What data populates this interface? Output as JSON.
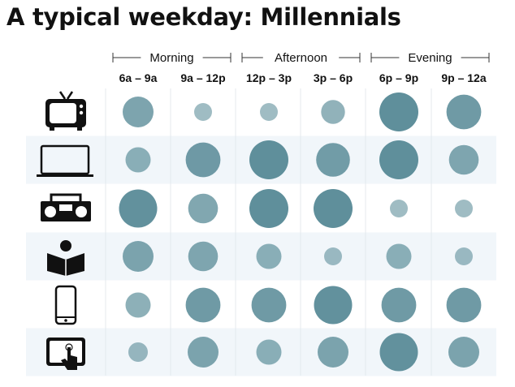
{
  "title": "A typical weekday: Millennials",
  "chart_data": {
    "type": "bubble-matrix",
    "title": "A typical weekday: Millennials",
    "column_groups": [
      {
        "label": "Morning",
        "columns": [
          0,
          1
        ]
      },
      {
        "label": "Afternoon",
        "columns": [
          2,
          3
        ]
      },
      {
        "label": "Evening",
        "columns": [
          4,
          5
        ]
      }
    ],
    "columns": [
      "6a – 9a",
      "9a – 12p",
      "12p – 3p",
      "3p – 6p",
      "6p – 9p",
      "9p – 12a"
    ],
    "rows": [
      {
        "icon": "tv-icon",
        "values": [
          15,
          5,
          5,
          9,
          24,
          19
        ]
      },
      {
        "icon": "laptop-icon",
        "values": [
          10,
          19,
          24,
          18,
          24,
          14
        ]
      },
      {
        "icon": "radio-icon",
        "values": [
          23,
          14,
          24,
          24,
          5,
          5
        ]
      },
      {
        "icon": "reader-icon",
        "values": [
          15,
          14,
          10,
          5,
          10,
          5
        ]
      },
      {
        "icon": "phone-icon",
        "values": [
          10,
          19,
          19,
          23,
          19,
          19
        ]
      },
      {
        "icon": "tablet-icon",
        "values": [
          6,
          15,
          10,
          15,
          23,
          15
        ]
      }
    ],
    "colors": {
      "bubble": "#5f8f9b",
      "band": "#f1f6fa",
      "grid": "#e4e9ee"
    }
  }
}
